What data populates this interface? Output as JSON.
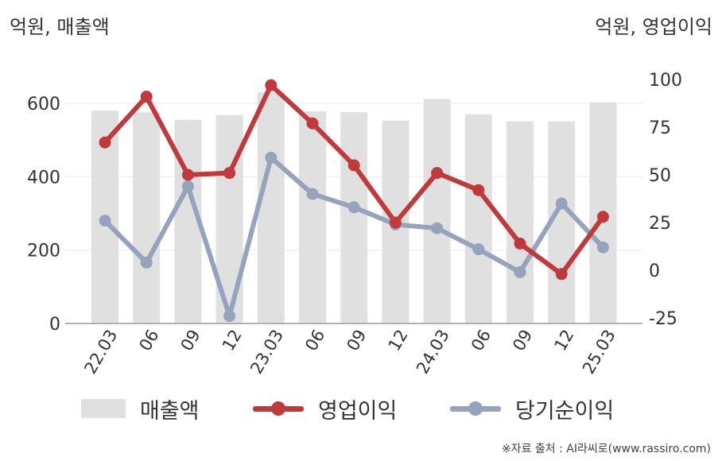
{
  "header": {
    "left_unit": "억원, 매출액",
    "right_unit": "억원, 영업이익"
  },
  "footer": {
    "source": "※자료 출처 : AI라씨로(www.rassiro.com)"
  },
  "chart_data": {
    "type": "bar",
    "categories": [
      "22.03",
      "06",
      "09",
      "12",
      "23.03",
      "06",
      "09",
      "12",
      "24.03",
      "06",
      "09",
      "12",
      "25.03"
    ],
    "series": [
      {
        "name": "매출액",
        "type": "bar",
        "axis": "left",
        "color": "#e0e0e0",
        "values": [
          580,
          575,
          555,
          568,
          630,
          578,
          576,
          553,
          612,
          570,
          551,
          551,
          603
        ]
      },
      {
        "name": "영업이익",
        "type": "line",
        "axis": "right",
        "color": "#c0393b",
        "values": [
          67,
          91,
          50,
          51,
          97,
          77,
          55,
          25,
          51,
          42,
          14,
          -2,
          28
        ]
      },
      {
        "name": "당기순이익",
        "type": "line",
        "axis": "right",
        "color": "#95a3bc",
        "values": [
          26,
          4,
          44,
          -24,
          59,
          40,
          33,
          24,
          22,
          11,
          -1,
          35,
          12
        ]
      }
    ],
    "y_left": {
      "range": [
        0,
        600
      ],
      "ticks": [
        "0",
        "200",
        "400",
        "600"
      ]
    },
    "y_right": {
      "range": [
        -25,
        100
      ],
      "ticks": [
        "-25",
        "0",
        "25",
        "50",
        "75",
        "100"
      ]
    },
    "grid": true,
    "legend_position": "bottom"
  }
}
